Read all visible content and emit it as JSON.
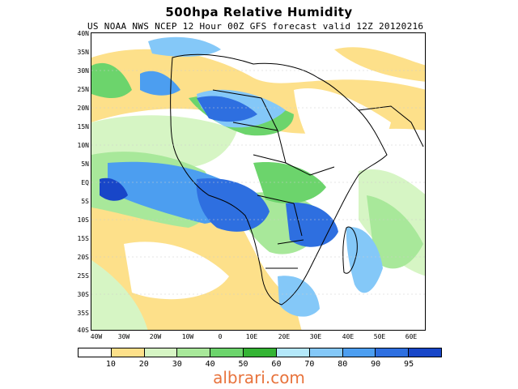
{
  "title": "500hpa Relative Humidity",
  "subtitle": "US NOAA NWS NCEP 12 Hour 00Z GFS forecast valid 12Z 20120216",
  "lat_labels": [
    "40N",
    "35N",
    "30N",
    "25N",
    "20N",
    "15N",
    "10N",
    "5N",
    "EQ",
    "5S",
    "10S",
    "15S",
    "20S",
    "25S",
    "30S",
    "35S",
    "40S"
  ],
  "lon_labels": [
    "40W",
    "30W",
    "20W",
    "10W",
    "0",
    "10E",
    "20E",
    "30E",
    "40E",
    "50E",
    "60E"
  ],
  "colorbar": {
    "colors": [
      "#ffffff",
      "#fde08a",
      "#d6f5c4",
      "#a8e89a",
      "#6cd46c",
      "#34b434",
      "#b4e8fa",
      "#84c8f8",
      "#4c9ef0",
      "#2e6fe0",
      "#1846c8"
    ],
    "labels": [
      "10",
      "20",
      "30",
      "40",
      "50",
      "60",
      "70",
      "80",
      "90",
      "95"
    ]
  },
  "watermark": "albrari.com"
}
